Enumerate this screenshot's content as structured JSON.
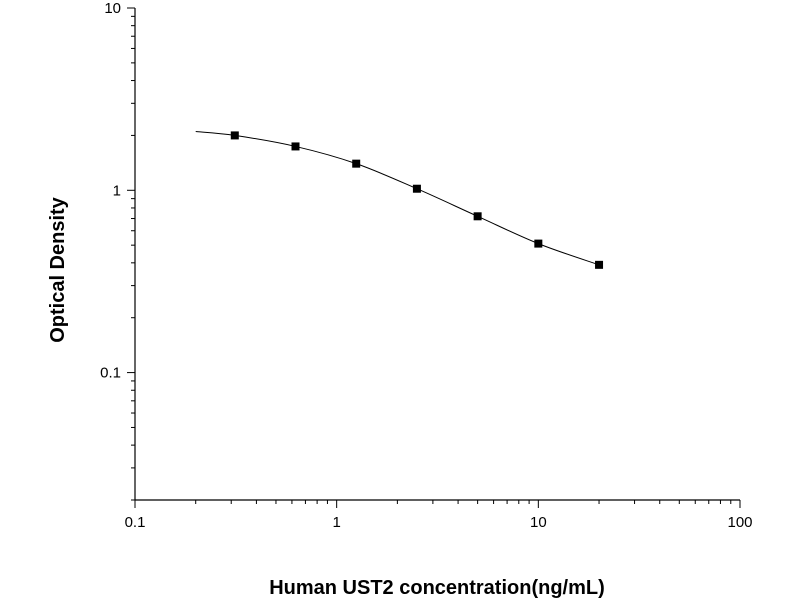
{
  "chart_data": {
    "type": "scatter",
    "xlabel": "Human UST2 concentration(ng/mL)",
    "ylabel": "Optical Density",
    "x_scale": "log",
    "y_scale": "log",
    "xlim": [
      0.1,
      100
    ],
    "ylim": [
      0.02,
      10
    ],
    "x_ticks": [
      "0.1",
      "1",
      "10",
      "100"
    ],
    "y_ticks": [
      "0.1",
      "1",
      "10"
    ],
    "grid": false,
    "series": [
      {
        "marker": "square",
        "x": [
          0.3125,
          0.625,
          1.25,
          2.5,
          5,
          10,
          20
        ],
        "y": [
          2.0,
          1.74,
          1.4,
          1.02,
          0.72,
          0.51,
          0.39
        ]
      }
    ],
    "fit_curve": {
      "x": [
        0.2,
        0.3125,
        0.625,
        1.25,
        2.5,
        5,
        10,
        20
      ],
      "y": [
        2.1,
        2.0,
        1.74,
        1.4,
        1.02,
        0.72,
        0.51,
        0.39
      ]
    },
    "colors": {
      "axis": "#000000",
      "marker": "#000000",
      "curve": "#000000"
    }
  }
}
